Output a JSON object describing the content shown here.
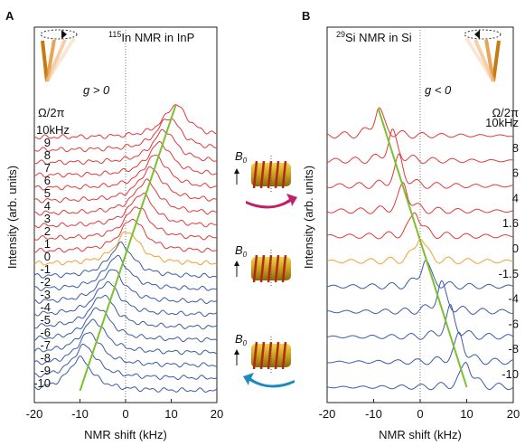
{
  "chart_data": [
    {
      "type": "waterfall",
      "panel": "A",
      "isotope": "115",
      "title": "In NMR in InP",
      "annotation": "g > 0",
      "legend_title": "Ω/2π",
      "x_label": "NMR shift (kHz)",
      "y_label": "Intensity (arb. units)",
      "xlim": [
        -20,
        20
      ],
      "xticks": [
        -20,
        -10,
        0,
        10,
        20
      ],
      "categories": [
        "10kHz",
        "9",
        "8",
        "7",
        "6",
        "5",
        "4",
        "3",
        "2",
        "1",
        "0",
        "-1",
        "-2",
        "-3",
        "-4",
        "-5",
        "-6",
        "-7",
        "-8",
        "-9",
        "-10"
      ],
      "values": [
        11,
        9.5,
        8.5,
        7.5,
        6.5,
        5.5,
        4.5,
        3.5,
        2.5,
        1.5,
        0.5,
        -1,
        -2,
        -3,
        -4,
        -5,
        -6,
        -7,
        -8,
        -9,
        -10
      ],
      "colors": [
        "#e03a3a",
        "#e03a3a",
        "#e03a3a",
        "#e03a3a",
        "#e03a3a",
        "#e03a3a",
        "#e03a3a",
        "#e03a3a",
        "#e03a3a",
        "#e03a3a",
        "#f0a030",
        "#3a5aa8",
        "#3a5aa8",
        "#3a5aa8",
        "#3a5aa8",
        "#3a5aa8",
        "#3a5aa8",
        "#3a5aa8",
        "#3a5aa8",
        "#3a5aa8",
        "#3a5aa8"
      ],
      "trend_color": "#7cc030"
    },
    {
      "type": "waterfall",
      "panel": "B",
      "isotope": "29",
      "title": "Si NMR in Si",
      "annotation": "g < 0",
      "legend_title": "Ω/2π",
      "x_label": "NMR shift (kHz)",
      "y_label": "Intensity (arb. units)",
      "xlim": [
        -20,
        20
      ],
      "xticks": [
        -20,
        -10,
        0,
        10,
        20
      ],
      "categories": [
        "10kHz",
        "8",
        "6",
        "4",
        "1.6",
        "0",
        "-1.5",
        "-4",
        "-6",
        "-8",
        "-10"
      ],
      "values": [
        -9,
        -6,
        -4.5,
        -3.5,
        -1,
        0,
        1,
        4.5,
        6.5,
        8.5,
        10
      ],
      "colors": [
        "#e03a3a",
        "#e03a3a",
        "#e03a3a",
        "#e03a3a",
        "#e03a3a",
        "#f0a030",
        "#3a5aa8",
        "#3a5aa8",
        "#3a5aa8",
        "#3a5aa8",
        "#3a5aa8"
      ],
      "trend_color": "#7cc030"
    }
  ],
  "diagram": {
    "field_labels": [
      {
        "symbol": "B",
        "subscript": "0"
      },
      {
        "symbol": "B",
        "subscript": "0"
      },
      {
        "symbol": "B",
        "subscript": "0"
      }
    ]
  }
}
